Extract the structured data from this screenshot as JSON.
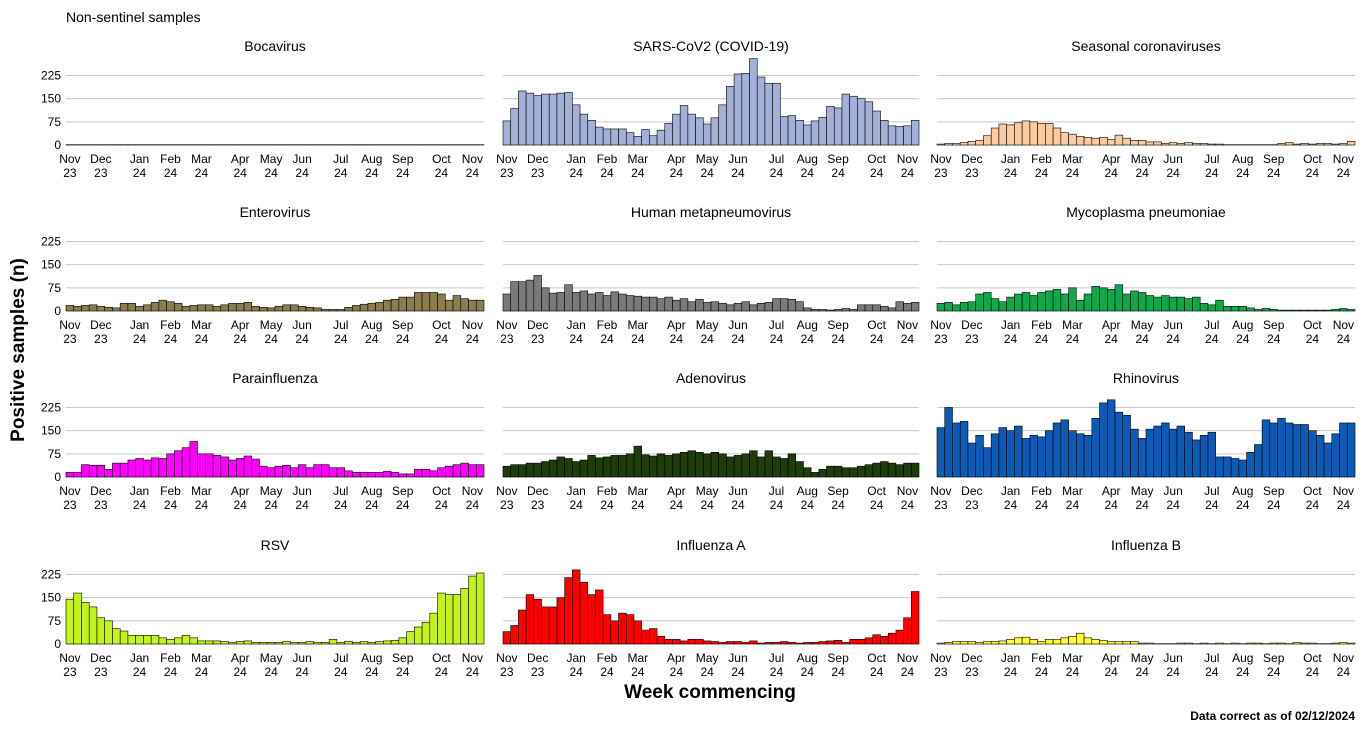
{
  "chart_data": {
    "type": "bar",
    "title": "Non-sentinel samples",
    "ylabel": "Positive samples (n)",
    "xlabel": "Week commencing",
    "note": "Data correct as of 02/12/2024",
    "grid": true,
    "ylim": [
      0,
      285
    ],
    "yticks": [
      0,
      75,
      150,
      225
    ],
    "categories": [
      "Nov\n23",
      null,
      null,
      null,
      "Dec\n23",
      null,
      null,
      null,
      null,
      "Jan\n24",
      null,
      null,
      null,
      "Feb\n24",
      null,
      null,
      null,
      "Mar\n24",
      null,
      null,
      null,
      null,
      "Apr\n24",
      null,
      null,
      null,
      "May\n24",
      null,
      null,
      null,
      "Jun\n24",
      null,
      null,
      null,
      null,
      "Jul\n24",
      null,
      null,
      null,
      "Aug\n24",
      null,
      null,
      null,
      "Sep\n24",
      null,
      null,
      null,
      null,
      "Oct\n24",
      null,
      null,
      null,
      "Nov\n24",
      null
    ],
    "panels": [
      {
        "title": "Bocavirus",
        "color": "#cccccc",
        "values": [
          1,
          1,
          1,
          1,
          1,
          1,
          1,
          1,
          1,
          1,
          1,
          1,
          1,
          1,
          1,
          1,
          1,
          1,
          1,
          1,
          1,
          1,
          1,
          1,
          1,
          1,
          1,
          1,
          1,
          1,
          1,
          1,
          1,
          1,
          1,
          1,
          1,
          1,
          1,
          1,
          1,
          1,
          1,
          1,
          1,
          1,
          1,
          1,
          1,
          1,
          1,
          1,
          1,
          1
        ]
      },
      {
        "title": "SARS-CoV2 (COVID-19)",
        "color": "#a3b1d8",
        "values": [
          78,
          118,
          175,
          168,
          160,
          165,
          165,
          168,
          170,
          130,
          100,
          80,
          58,
          52,
          52,
          52,
          40,
          28,
          50,
          30,
          48,
          70,
          100,
          128,
          100,
          88,
          68,
          88,
          130,
          190,
          230,
          232,
          280,
          220,
          200,
          200,
          92,
          95,
          80,
          65,
          78,
          90,
          125,
          120,
          165,
          158,
          150,
          140,
          110,
          80,
          62,
          60,
          62,
          80
        ]
      },
      {
        "title": "Seasonal coronaviruses",
        "color": "#fdcba1",
        "values": [
          3,
          5,
          5,
          8,
          12,
          15,
          30,
          55,
          68,
          65,
          72,
          78,
          75,
          70,
          70,
          55,
          40,
          35,
          28,
          25,
          22,
          25,
          18,
          32,
          22,
          15,
          15,
          10,
          10,
          5,
          8,
          5,
          8,
          5,
          5,
          3,
          3,
          1,
          1,
          1,
          1,
          1,
          1,
          1,
          5,
          8,
          3,
          5,
          3,
          5,
          5,
          3,
          5,
          12
        ]
      },
      {
        "title": "Enterovirus",
        "color": "#8b7d4e",
        "values": [
          18,
          15,
          18,
          20,
          15,
          12,
          10,
          25,
          25,
          15,
          20,
          28,
          35,
          30,
          25,
          15,
          18,
          20,
          20,
          15,
          20,
          25,
          25,
          28,
          15,
          12,
          10,
          15,
          20,
          20,
          15,
          12,
          10,
          5,
          5,
          5,
          12,
          18,
          22,
          25,
          28,
          35,
          38,
          45,
          45,
          60,
          60,
          60,
          55,
          35,
          50,
          40,
          35,
          35
        ]
      },
      {
        "title": "Human metapneumovirus",
        "color": "#7a7a7a",
        "values": [
          55,
          95,
          95,
          100,
          115,
          75,
          58,
          60,
          85,
          60,
          65,
          55,
          60,
          50,
          62,
          55,
          50,
          48,
          45,
          45,
          40,
          45,
          35,
          40,
          30,
          38,
          28,
          30,
          25,
          20,
          25,
          30,
          20,
          25,
          28,
          40,
          40,
          38,
          30,
          10,
          5,
          5,
          3,
          5,
          8,
          5,
          20,
          20,
          20,
          15,
          10,
          30,
          25,
          28
        ]
      },
      {
        "title": "Mycoplasma pneumoniae",
        "color": "#11a84b",
        "values": [
          25,
          28,
          20,
          28,
          30,
          55,
          60,
          40,
          30,
          45,
          55,
          60,
          50,
          60,
          65,
          70,
          55,
          75,
          35,
          55,
          80,
          75,
          70,
          85,
          55,
          65,
          60,
          50,
          45,
          50,
          45,
          45,
          40,
          45,
          25,
          20,
          35,
          15,
          15,
          15,
          10,
          5,
          8,
          5,
          3,
          3,
          3,
          3,
          3,
          3,
          3,
          5,
          8,
          5
        ]
      },
      {
        "title": "Parainfluenza",
        "color": "#ff00ff",
        "values": [
          15,
          15,
          40,
          38,
          38,
          25,
          45,
          45,
          55,
          60,
          55,
          62,
          60,
          75,
          85,
          95,
          115,
          75,
          75,
          70,
          65,
          55,
          60,
          68,
          58,
          35,
          30,
          35,
          38,
          30,
          40,
          30,
          40,
          40,
          30,
          30,
          20,
          15,
          15,
          15,
          15,
          18,
          15,
          10,
          10,
          25,
          25,
          20,
          30,
          35,
          40,
          45,
          40,
          40
        ]
      },
      {
        "title": "Adenovirus",
        "color": "#1f3c0b",
        "values": [
          35,
          40,
          40,
          45,
          45,
          50,
          55,
          65,
          60,
          50,
          55,
          70,
          62,
          65,
          70,
          70,
          75,
          100,
          72,
          68,
          75,
          70,
          75,
          80,
          85,
          80,
          75,
          80,
          75,
          65,
          70,
          75,
          85,
          65,
          85,
          65,
          60,
          75,
          50,
          30,
          15,
          25,
          35,
          35,
          30,
          30,
          35,
          40,
          45,
          50,
          45,
          40,
          45,
          45
        ]
      },
      {
        "title": "Rhinovirus",
        "color": "#0d5bb5",
        "values": [
          160,
          225,
          175,
          180,
          110,
          135,
          95,
          140,
          160,
          150,
          165,
          125,
          135,
          130,
          150,
          175,
          185,
          150,
          140,
          135,
          190,
          240,
          250,
          210,
          200,
          155,
          125,
          155,
          165,
          175,
          155,
          165,
          145,
          120,
          135,
          145,
          65,
          65,
          60,
          55,
          80,
          105,
          185,
          175,
          190,
          175,
          170,
          170,
          150,
          135,
          110,
          140,
          175,
          175
        ]
      },
      {
        "title": "RSV",
        "color": "#c3f31a",
        "values": [
          145,
          165,
          135,
          120,
          85,
          75,
          50,
          42,
          28,
          28,
          28,
          28,
          20,
          15,
          20,
          28,
          20,
          10,
          10,
          10,
          8,
          5,
          8,
          10,
          5,
          5,
          5,
          5,
          8,
          5,
          5,
          8,
          5,
          5,
          15,
          5,
          8,
          5,
          8,
          5,
          8,
          10,
          12,
          20,
          40,
          55,
          70,
          100,
          165,
          160,
          160,
          180,
          220,
          230
        ]
      },
      {
        "title": "Influenza A",
        "color": "#ff0000",
        "values": [
          40,
          60,
          110,
          160,
          145,
          120,
          120,
          150,
          215,
          240,
          200,
          160,
          175,
          95,
          75,
          100,
          95,
          75,
          45,
          50,
          25,
          15,
          15,
          10,
          15,
          15,
          10,
          8,
          5,
          8,
          8,
          5,
          10,
          3,
          5,
          5,
          8,
          5,
          3,
          5,
          5,
          8,
          10,
          12,
          5,
          15,
          15,
          20,
          30,
          25,
          35,
          45,
          85,
          170
        ]
      },
      {
        "title": "Influenza B",
        "color": "#ffff33",
        "values": [
          3,
          5,
          8,
          8,
          8,
          5,
          8,
          8,
          10,
          15,
          20,
          22,
          15,
          8,
          15,
          15,
          20,
          25,
          35,
          20,
          15,
          12,
          8,
          8,
          8,
          8,
          3,
          3,
          1,
          1,
          1,
          3,
          3,
          1,
          3,
          1,
          3,
          1,
          3,
          1,
          3,
          3,
          1,
          3,
          3,
          1,
          5,
          3,
          3,
          1,
          1,
          3,
          5,
          3
        ]
      }
    ]
  }
}
